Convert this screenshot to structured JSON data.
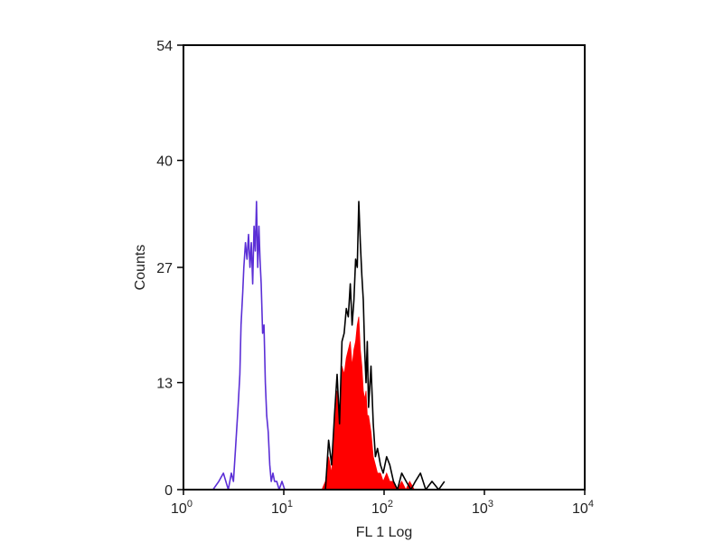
{
  "chart_data": {
    "type": "area",
    "xlabel": "FL 1 Log",
    "ylabel": "Counts",
    "x_scale": "log",
    "xlim": [
      1,
      10000
    ],
    "ylim": [
      0,
      54
    ],
    "x_ticks": [
      {
        "value": 1,
        "base": "10",
        "exp": "0"
      },
      {
        "value": 10,
        "base": "10",
        "exp": "1"
      },
      {
        "value": 100,
        "base": "10",
        "exp": "2"
      },
      {
        "value": 1000,
        "base": "10",
        "exp": "3"
      },
      {
        "value": 10000,
        "base": "10",
        "exp": "4"
      }
    ],
    "y_ticks": [
      {
        "value": 0,
        "label": "0"
      },
      {
        "value": 13,
        "label": "13"
      },
      {
        "value": 27,
        "label": "27"
      },
      {
        "value": 40,
        "label": "40"
      },
      {
        "value": 54,
        "label": "54"
      }
    ],
    "grid": false,
    "series": [
      {
        "style": "line",
        "color": "#5b2fd6",
        "x": [
          1.97,
          2.25,
          2.5,
          2.8,
          3.0,
          3.15,
          3.3,
          3.5,
          3.65,
          3.75,
          3.9,
          4.0,
          4.15,
          4.3,
          4.45,
          4.6,
          4.75,
          4.9,
          5.05,
          5.2,
          5.35,
          5.5,
          5.65,
          5.8,
          5.95,
          6.15,
          6.35,
          6.55,
          6.75,
          7.0,
          7.25,
          7.5,
          7.8,
          8.1,
          8.5,
          9.0,
          9.6,
          10.2
        ],
        "y": [
          0,
          1,
          2,
          0,
          2,
          1,
          5,
          10,
          14,
          20,
          24,
          27,
          30,
          28,
          31,
          27,
          30,
          25,
          32,
          29,
          35,
          27,
          32,
          28,
          25,
          19,
          20,
          13,
          9,
          7,
          3,
          1,
          2,
          1,
          1,
          0,
          1,
          0
        ]
      },
      {
        "style": "line",
        "color": "#000000",
        "x": [
          26,
          28,
          30,
          32,
          34,
          36,
          38,
          40,
          42,
          44,
          46,
          48,
          50,
          52,
          54,
          56,
          58,
          60,
          62,
          64,
          66,
          68,
          70,
          74,
          78,
          82,
          86,
          92,
          98,
          106,
          114,
          124,
          136,
          150,
          166,
          185,
          205,
          230,
          260,
          300,
          350,
          400
        ],
        "y": [
          0,
          6,
          3,
          9,
          14,
          8,
          18,
          19,
          22,
          21,
          25,
          20,
          23,
          28,
          27,
          35,
          30,
          26,
          23,
          17,
          13,
          18,
          10,
          15,
          8,
          4,
          5,
          3,
          2,
          4,
          3,
          1,
          0,
          2,
          1,
          0,
          1,
          2,
          0,
          1,
          0,
          1
        ]
      },
      {
        "style": "fill",
        "color": "#ff0000",
        "x": [
          24,
          26,
          28,
          30,
          32,
          34,
          36,
          38,
          40,
          42,
          44,
          46,
          48,
          50,
          52,
          54,
          56,
          58,
          60,
          62,
          64,
          66,
          68,
          70,
          74,
          78,
          82,
          86,
          92,
          98,
          106,
          114,
          124,
          136,
          150,
          165,
          180,
          200
        ],
        "y": [
          0,
          1,
          4,
          2,
          8,
          12,
          7,
          15,
          14,
          16,
          17,
          18,
          15,
          17,
          18,
          20,
          21,
          17,
          15,
          12,
          11,
          12,
          9,
          9,
          7,
          4,
          3,
          2,
          2,
          1,
          2,
          1,
          1,
          0,
          1,
          0,
          1,
          0
        ]
      }
    ]
  }
}
